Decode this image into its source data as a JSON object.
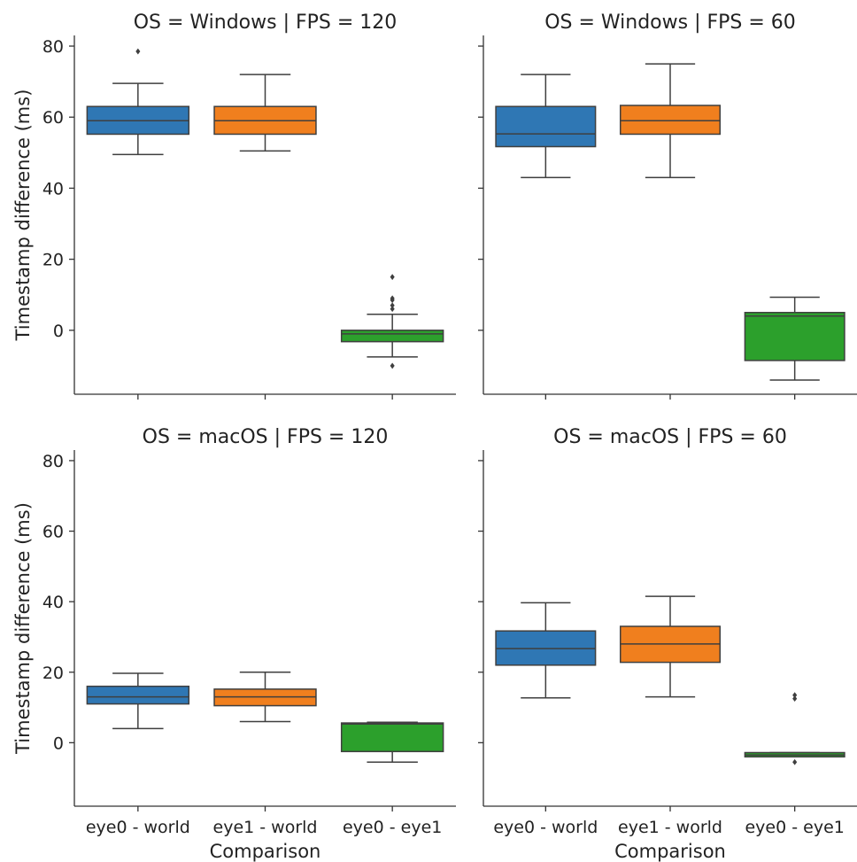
{
  "chart_data": {
    "type": "box",
    "categories": [
      "eye0 - world",
      "eye1 - world",
      "eye0 - eye1"
    ],
    "colors": [
      "#2f77b4",
      "#f07f1e",
      "#2ca02c"
    ],
    "xlabel": "Comparison",
    "ylabel": "Timestamp difference (ms)",
    "ylim": [
      -18,
      83
    ],
    "yticks": [
      0,
      20,
      40,
      60,
      80
    ],
    "grid": false,
    "panels": [
      {
        "title": "OS = Windows | FPS = 120",
        "boxes": [
          {
            "category": "eye0 - world",
            "whisker_low": 49.5,
            "q1": 55.2,
            "median": 59,
            "q3": 63,
            "whisker_high": 69.5,
            "outliers": [
              78.5
            ]
          },
          {
            "category": "eye1 - world",
            "whisker_low": 50.5,
            "q1": 55.2,
            "median": 59,
            "q3": 63,
            "whisker_high": 72,
            "outliers": []
          },
          {
            "category": "eye0 - eye1",
            "whisker_low": -7.5,
            "q1": -3.2,
            "median": -1,
            "q3": 0,
            "whisker_high": 4.5,
            "outliers": [
              -10,
              6,
              7,
              8.5,
              9,
              15
            ]
          }
        ]
      },
      {
        "title": "OS = Windows | FPS = 60",
        "boxes": [
          {
            "category": "eye0 - world",
            "whisker_low": 43,
            "q1": 51.7,
            "median": 55.3,
            "q3": 63,
            "whisker_high": 72,
            "outliers": []
          },
          {
            "category": "eye1 - world",
            "whisker_low": 43,
            "q1": 55.2,
            "median": 59,
            "q3": 63.3,
            "whisker_high": 75,
            "outliers": []
          },
          {
            "category": "eye0 - eye1",
            "whisker_low": -14,
            "q1": -8.5,
            "median": 4,
            "q3": 5,
            "whisker_high": 9.3,
            "outliers": []
          }
        ]
      },
      {
        "title": "OS = macOS | FPS = 120",
        "boxes": [
          {
            "category": "eye0 - world",
            "whisker_low": 4,
            "q1": 11,
            "median": 13,
            "q3": 16,
            "whisker_high": 19.7,
            "outliers": []
          },
          {
            "category": "eye1 - world",
            "whisker_low": 6,
            "q1": 10.5,
            "median": 13,
            "q3": 15.2,
            "whisker_high": 20,
            "outliers": []
          },
          {
            "category": "eye0 - eye1",
            "whisker_low": -5.5,
            "q1": -2.5,
            "median": 5.3,
            "q3": 5.6,
            "whisker_high": 5.8,
            "outliers": []
          }
        ]
      },
      {
        "title": "OS = macOS | FPS = 60",
        "boxes": [
          {
            "category": "eye0 - world",
            "whisker_low": 12.7,
            "q1": 22,
            "median": 26.7,
            "q3": 31.7,
            "whisker_high": 39.7,
            "outliers": []
          },
          {
            "category": "eye1 - world",
            "whisker_low": 13,
            "q1": 22.8,
            "median": 28,
            "q3": 33,
            "whisker_high": 41.5,
            "outliers": []
          },
          {
            "category": "eye0 - eye1",
            "whisker_low": -4,
            "q1": -4,
            "median": -3.5,
            "q3": -2.8,
            "whisker_high": -2.8,
            "outliers": [
              -5.5,
              12.5,
              13.5
            ]
          }
        ]
      }
    ]
  }
}
